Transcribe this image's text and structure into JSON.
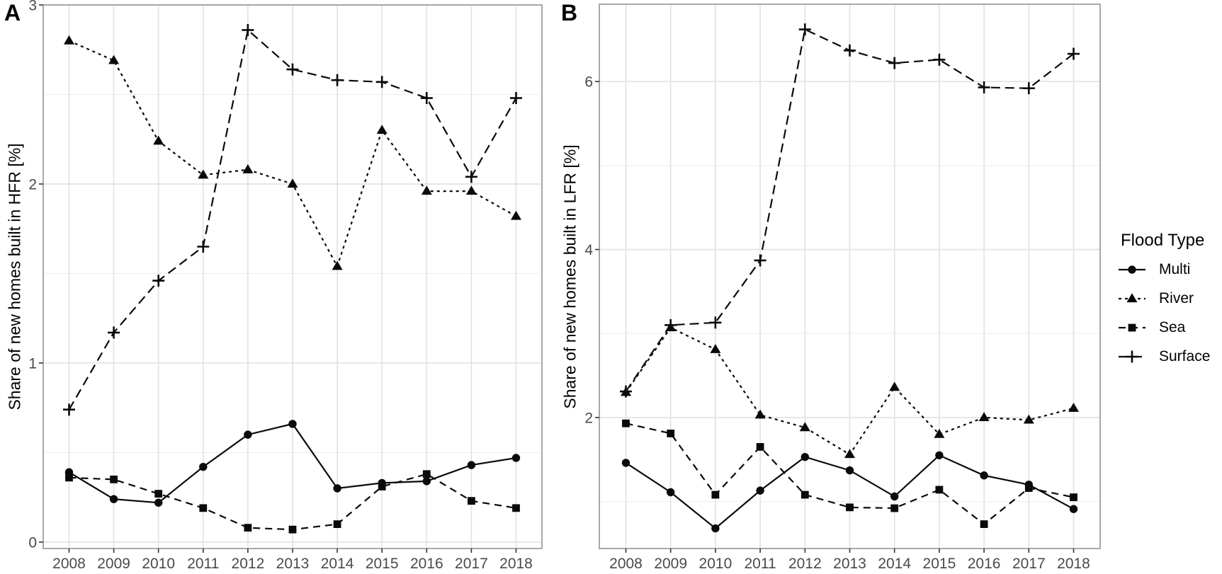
{
  "legend": {
    "title": "Flood Type",
    "items": [
      {
        "label": "Multi",
        "marker": "circle",
        "dash": "solid"
      },
      {
        "label": "River",
        "marker": "triangle",
        "dash": "shortdash"
      },
      {
        "label": "Sea",
        "marker": "square",
        "dash": "mediumdash"
      },
      {
        "label": "Surface",
        "marker": "plus",
        "dash": "longdash"
      }
    ]
  },
  "colors": {
    "series_ink": "#0a0a0a",
    "major_grid": "#e3e3e3",
    "minor_grid": "#efefef",
    "panel_border": "#9e9e9e",
    "tick_mark": "#333333",
    "tick_label": "#4a4a4a"
  },
  "chart_data": [
    {
      "type": "line",
      "panel_label": "A",
      "ylabel": "Share of new homes built in HFR [%]",
      "xlabel": "",
      "x": [
        2008,
        2009,
        2010,
        2011,
        2012,
        2013,
        2014,
        2015,
        2016,
        2017,
        2018
      ],
      "yticks": [
        0,
        1,
        2,
        3
      ],
      "minor_yticks": [
        0.5,
        1.5,
        2.5
      ],
      "ylim": [
        -0.036,
        3.0
      ],
      "grid": true,
      "series": [
        {
          "name": "Multi",
          "marker": "circle",
          "dash": "solid",
          "values": [
            0.39,
            0.24,
            0.22,
            0.42,
            0.6,
            0.66,
            0.3,
            0.33,
            0.34,
            0.43,
            0.47
          ]
        },
        {
          "name": "River",
          "marker": "triangle",
          "dash": "shortdash",
          "values": [
            2.8,
            2.69,
            2.24,
            2.05,
            2.08,
            2.0,
            1.54,
            2.3,
            1.96,
            1.96,
            1.82
          ]
        },
        {
          "name": "Sea",
          "marker": "square",
          "dash": "mediumdash",
          "values": [
            0.36,
            0.35,
            0.27,
            0.19,
            0.08,
            0.07,
            0.1,
            0.31,
            0.38,
            0.23,
            0.19
          ]
        },
        {
          "name": "Surface",
          "marker": "plus",
          "dash": "longdash",
          "values": [
            0.74,
            1.17,
            1.46,
            1.65,
            2.86,
            2.64,
            2.58,
            2.57,
            2.48,
            2.04,
            2.48
          ]
        }
      ]
    },
    {
      "type": "line",
      "panel_label": "B",
      "ylabel": "Share of new homes built in LFR [%]",
      "xlabel": "",
      "x": [
        2008,
        2009,
        2010,
        2011,
        2012,
        2013,
        2014,
        2015,
        2016,
        2017,
        2018
      ],
      "yticks": [
        2,
        4,
        6
      ],
      "minor_yticks": [
        1,
        3,
        5
      ],
      "ylim": [
        0.44,
        6.92
      ],
      "grid": true,
      "series": [
        {
          "name": "Multi",
          "marker": "circle",
          "dash": "solid",
          "values": [
            1.46,
            1.11,
            0.68,
            1.13,
            1.53,
            1.37,
            1.06,
            1.55,
            1.31,
            1.2,
            0.91
          ]
        },
        {
          "name": "River",
          "marker": "triangle",
          "dash": "shortdash",
          "values": [
            2.3,
            3.07,
            2.81,
            2.03,
            1.88,
            1.56,
            2.36,
            1.8,
            2.0,
            1.97,
            2.11
          ]
        },
        {
          "name": "Sea",
          "marker": "square",
          "dash": "mediumdash",
          "values": [
            1.93,
            1.81,
            1.08,
            1.65,
            1.08,
            0.93,
            0.92,
            1.14,
            0.73,
            1.16,
            1.05
          ]
        },
        {
          "name": "Surface",
          "marker": "plus",
          "dash": "longdash",
          "values": [
            2.31,
            3.1,
            3.13,
            3.87,
            6.62,
            6.37,
            6.22,
            6.26,
            5.93,
            5.92,
            6.33
          ]
        }
      ]
    }
  ]
}
